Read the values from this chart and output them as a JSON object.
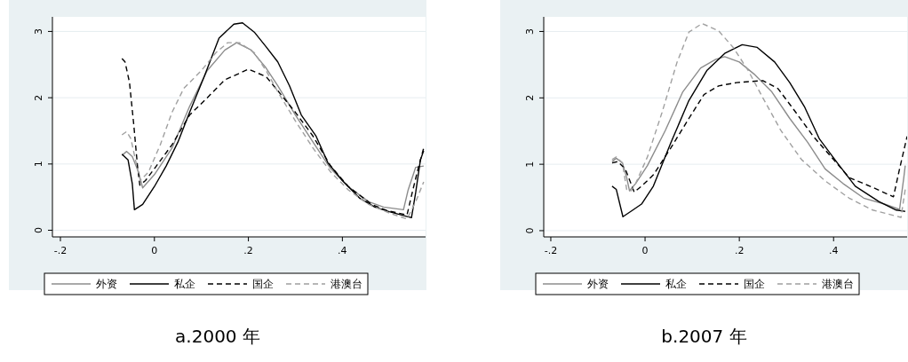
{
  "chart_data": [
    {
      "type": "line",
      "title": "a.2000 年",
      "xlim": [
        -0.217,
        0.577
      ],
      "ylim": [
        -0.1,
        3.22
      ],
      "xticks": [
        {
          "value": -0.2,
          "label": "-.2"
        },
        0,
        {
          "value": 0.2,
          "label": ".2"
        },
        {
          "value": 0.4,
          "label": ".4"
        }
      ],
      "yticks": [
        0,
        1,
        2,
        3
      ],
      "grid": "y",
      "legend": "bottom",
      "series": [
        {
          "name": "外资",
          "color": "#8c8c8c",
          "line_style": "solid",
          "x": [
            -0.069,
            -0.059,
            -0.047,
            -0.034,
            -0.025,
            0,
            0.0375,
            0.075,
            0.1125,
            0.15,
            0.175,
            0.206,
            0.2375,
            0.2625,
            0.3,
            0.3375,
            0.375,
            0.4125,
            0.456,
            0.4875,
            0.53,
            0.54,
            0.556,
            0.573
          ],
          "values": [
            1.13,
            1.19,
            1.11,
            0.88,
            0.64,
            0.84,
            1.24,
            1.87,
            2.41,
            2.72,
            2.83,
            2.72,
            2.45,
            2.18,
            1.74,
            1.33,
            0.93,
            0.66,
            0.43,
            0.35,
            0.31,
            0.61,
            0.95,
            0.97
          ]
        },
        {
          "name": "私企",
          "color": "#000000",
          "line_style": "solid",
          "x": [
            -0.069,
            -0.056,
            -0.047,
            -0.0425,
            -0.025,
            0,
            0.025,
            0.05,
            0.075,
            0.106,
            0.1375,
            0.169,
            0.1875,
            0.2125,
            0.2375,
            0.2625,
            0.2875,
            0.3125,
            0.344,
            0.369,
            0.4,
            0.4375,
            0.469,
            0.5,
            0.547,
            0.556,
            0.566,
            0.573
          ],
          "values": [
            1.15,
            1.06,
            0.7,
            0.31,
            0.39,
            0.66,
            0.97,
            1.33,
            1.78,
            2.32,
            2.9,
            3.11,
            3.13,
            2.99,
            2.77,
            2.54,
            2.18,
            1.74,
            1.42,
            1.02,
            0.75,
            0.48,
            0.35,
            0.28,
            0.19,
            0.57,
            1.06,
            1.2
          ]
        },
        {
          "name": "国企",
          "color": "#000000",
          "line_style": "dashed",
          "x": [
            -0.069,
            -0.0625,
            -0.053,
            -0.044,
            -0.036,
            -0.031,
            -0.019,
            0,
            0.0375,
            0.075,
            0.1125,
            0.15,
            0.2,
            0.2375,
            0.269,
            0.3,
            0.3375,
            0.375,
            0.4125,
            0.4625,
            0.494,
            0.5375,
            0.55,
            0.5625,
            0.573
          ],
          "values": [
            2.59,
            2.54,
            2.23,
            1.6,
            0.97,
            0.68,
            0.75,
            0.93,
            1.29,
            1.74,
            2.0,
            2.27,
            2.43,
            2.32,
            2.05,
            1.78,
            1.42,
            0.97,
            0.66,
            0.39,
            0.3,
            0.23,
            0.61,
            0.97,
            1.24
          ]
        },
        {
          "name": "港澳台",
          "color": "#a0a0a0",
          "line_style": "dashed",
          "x": [
            -0.069,
            -0.059,
            -0.05,
            -0.0375,
            -0.03,
            -0.0125,
            0.0125,
            0.0375,
            0.0625,
            0.1,
            0.131,
            0.156,
            0.181,
            0.2125,
            0.2375,
            0.2625,
            0.3,
            0.3375,
            0.375,
            0.4125,
            0.456,
            0.5,
            0.5375,
            0.556,
            0.573
          ],
          "values": [
            1.44,
            1.49,
            1.38,
            0.97,
            0.75,
            0.88,
            1.29,
            1.78,
            2.14,
            2.41,
            2.68,
            2.83,
            2.83,
            2.68,
            2.41,
            2.09,
            1.65,
            1.24,
            0.88,
            0.61,
            0.39,
            0.26,
            0.17,
            0.43,
            0.73
          ]
        }
      ]
    },
    {
      "type": "line",
      "title": "b.2007 年",
      "xlim": [
        -0.215,
        0.556
      ],
      "ylim": [
        -0.094,
        3.22
      ],
      "xticks": [
        {
          "value": -0.2,
          "label": "-.2"
        },
        0,
        {
          "value": 0.2,
          "label": ".2"
        },
        {
          "value": 0.4,
          "label": ".4"
        }
      ],
      "yticks": [
        0,
        1,
        2,
        3
      ],
      "grid": "y",
      "legend": "bottom",
      "series": [
        {
          "name": "外资",
          "color": "#8c8c8c",
          "line_style": "solid",
          "x": [
            -0.07,
            -0.061,
            -0.048,
            -0.039,
            -0.033,
            -0.02,
            0.005,
            0.043,
            0.08,
            0.118,
            0.15,
            0.169,
            0.2,
            0.231,
            0.269,
            0.307,
            0.345,
            0.382,
            0.42,
            0.464,
            0.508,
            0.54,
            0.549,
            0.552
          ],
          "values": [
            1.04,
            1.09,
            1.02,
            0.8,
            0.6,
            0.71,
            0.98,
            1.51,
            2.09,
            2.45,
            2.58,
            2.62,
            2.54,
            2.36,
            2.09,
            1.69,
            1.33,
            0.93,
            0.71,
            0.49,
            0.4,
            0.32,
            0.8,
            0.98
          ]
        },
        {
          "name": "私企",
          "color": "#000000",
          "line_style": "solid",
          "x": [
            -0.07,
            -0.061,
            -0.047,
            -0.026,
            -0.0075,
            0.0176,
            0.055,
            0.093,
            0.131,
            0.169,
            0.206,
            0.238,
            0.275,
            0.307,
            0.338,
            0.37,
            0.408,
            0.446,
            0.496,
            0.533,
            0.552
          ],
          "values": [
            0.67,
            0.62,
            0.21,
            0.31,
            0.4,
            0.67,
            1.33,
            1.96,
            2.41,
            2.67,
            2.8,
            2.76,
            2.54,
            2.23,
            1.87,
            1.38,
            1.02,
            0.67,
            0.44,
            0.31,
            0.29
          ]
        },
        {
          "name": "国企",
          "color": "#000000",
          "line_style": "dashed",
          "x": [
            -0.07,
            -0.058,
            -0.042,
            -0.03,
            -0.023,
            -0.0075,
            0.0176,
            0.055,
            0.093,
            0.125,
            0.156,
            0.194,
            0.25,
            0.282,
            0.32,
            0.357,
            0.395,
            0.433,
            0.477,
            0.527,
            0.54,
            0.556
          ],
          "values": [
            1.02,
            1.04,
            0.93,
            0.71,
            0.58,
            0.67,
            0.84,
            1.25,
            1.69,
            2.05,
            2.18,
            2.23,
            2.26,
            2.14,
            1.78,
            1.42,
            1.11,
            0.8,
            0.67,
            0.51,
            0.93,
            1.42
          ]
        },
        {
          "name": "港澳台",
          "color": "#a0a0a0",
          "line_style": "dashed",
          "x": [
            -0.07,
            -0.061,
            -0.048,
            -0.039,
            -0.03,
            -0.02,
            0.005,
            0.036,
            0.068,
            0.093,
            0.121,
            0.156,
            0.187,
            0.219,
            0.25,
            0.288,
            0.332,
            0.382,
            0.433,
            0.483,
            0.543,
            0.552
          ],
          "values": [
            1.07,
            1.11,
            1.02,
            0.62,
            0.6,
            0.71,
            1.11,
            1.78,
            2.54,
            2.99,
            3.12,
            3.01,
            2.76,
            2.41,
            2.0,
            1.51,
            1.07,
            0.75,
            0.49,
            0.31,
            0.2,
            0.62
          ]
        }
      ]
    }
  ]
}
